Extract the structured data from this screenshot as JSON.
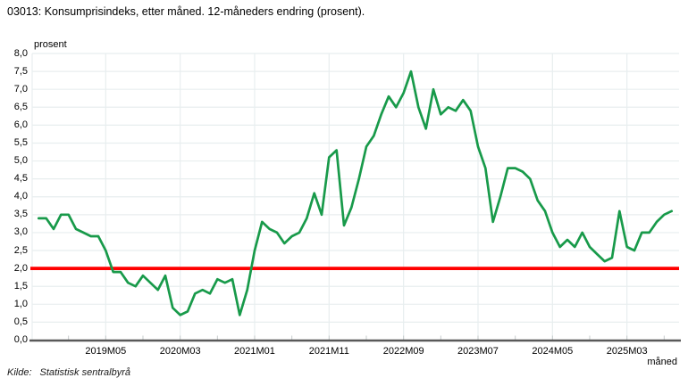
{
  "title": "03013: Konsumprisindeks, etter måned. 12-måneders endring (prosent).",
  "source": {
    "label": "Kilde:",
    "value": "Statistisk sentralbyrå"
  },
  "colors": {
    "series_green": "#189a4a",
    "reference_red": "#ff0000",
    "gridline": "#e8eeef",
    "axis_line": "#595959",
    "tick_mark": "#c7cccd",
    "background": "#ffffff"
  },
  "chart_data": {
    "type": "line",
    "title": "03013: Konsumprisindeks, etter måned. 12-måneders endring (prosent).",
    "ylabel": "prosent",
    "xlabel": "måned",
    "ylim": [
      0,
      8
    ],
    "ytick_step": 0.5,
    "grid": true,
    "legend": "none",
    "ytick_labels": [
      "8,0",
      "7,5",
      "7,0",
      "6,5",
      "6,0",
      "5,5",
      "5,0",
      "4,5",
      "4,0",
      "3,5",
      "3,0",
      "2,5",
      "2,0",
      "1,5",
      "1,0",
      "0,5",
      "0,0"
    ],
    "x_ticks": [
      {
        "label": "2019M05",
        "month_index": 9
      },
      {
        "label": "2020M03",
        "month_index": 19
      },
      {
        "label": "2021M01",
        "month_index": 29
      },
      {
        "label": "2021M11",
        "month_index": 39
      },
      {
        "label": "2022M09",
        "month_index": 49
      },
      {
        "label": "2023M07",
        "month_index": 59
      },
      {
        "label": "2024M05",
        "month_index": 69
      },
      {
        "label": "2025M03",
        "month_index": 79
      }
    ],
    "x": [
      "2018M08",
      "2018M09",
      "2018M10",
      "2018M11",
      "2018M12",
      "2019M01",
      "2019M02",
      "2019M03",
      "2019M04",
      "2019M05",
      "2019M06",
      "2019M07",
      "2019M08",
      "2019M09",
      "2019M10",
      "2019M11",
      "2019M12",
      "2020M01",
      "2020M02",
      "2020M03",
      "2020M04",
      "2020M05",
      "2020M06",
      "2020M07",
      "2020M08",
      "2020M09",
      "2020M10",
      "2020M11",
      "2020M12",
      "2021M01",
      "2021M02",
      "2021M03",
      "2021M04",
      "2021M05",
      "2021M06",
      "2021M07",
      "2021M08",
      "2021M09",
      "2021M10",
      "2021M11",
      "2021M12",
      "2022M01",
      "2022M02",
      "2022M03",
      "2022M04",
      "2022M05",
      "2022M06",
      "2022M07",
      "2022M08",
      "2022M09",
      "2022M10",
      "2022M11",
      "2022M12",
      "2023M01",
      "2023M02",
      "2023M03",
      "2023M04",
      "2023M05",
      "2023M06",
      "2023M07",
      "2023M08",
      "2023M09",
      "2023M10",
      "2023M11",
      "2023M12",
      "2024M01",
      "2024M02",
      "2024M03",
      "2024M04",
      "2024M05",
      "2024M06",
      "2024M07",
      "2024M08",
      "2024M09",
      "2024M10",
      "2024M11",
      "2024M12",
      "2025M01",
      "2025M02",
      "2025M03",
      "2025M04",
      "2025M05",
      "2025M06",
      "2025M07",
      "2025M08",
      "2025M09"
    ],
    "series": [
      {
        "name": "Konsumprisindeks, 12-måneders endring (prosent)",
        "color": "#189a4a",
        "values": [
          3.4,
          3.4,
          3.1,
          3.5,
          3.5,
          3.1,
          3.0,
          2.9,
          2.9,
          2.5,
          1.9,
          1.9,
          1.6,
          1.5,
          1.8,
          1.6,
          1.4,
          1.8,
          0.9,
          0.7,
          0.8,
          1.3,
          1.4,
          1.3,
          1.7,
          1.6,
          1.7,
          0.7,
          1.4,
          2.5,
          3.3,
          3.1,
          3.0,
          2.7,
          2.9,
          3.0,
          3.4,
          4.1,
          3.5,
          5.1,
          5.3,
          3.2,
          3.7,
          4.5,
          5.4,
          5.7,
          6.3,
          6.8,
          6.5,
          6.9,
          7.5,
          6.5,
          5.9,
          7.0,
          6.3,
          6.5,
          6.4,
          6.7,
          6.4,
          5.4,
          4.8,
          3.3,
          4.0,
          4.8,
          4.8,
          4.7,
          4.5,
          3.9,
          3.6,
          3.0,
          2.6,
          2.8,
          2.6,
          3.0,
          2.6,
          2.4,
          2.2,
          2.3,
          3.6,
          2.6,
          2.5,
          3.0,
          3.0,
          3.3,
          3.5,
          3.6
        ]
      }
    ],
    "reference_line": {
      "value": 2.0,
      "color": "#ff0000"
    }
  }
}
